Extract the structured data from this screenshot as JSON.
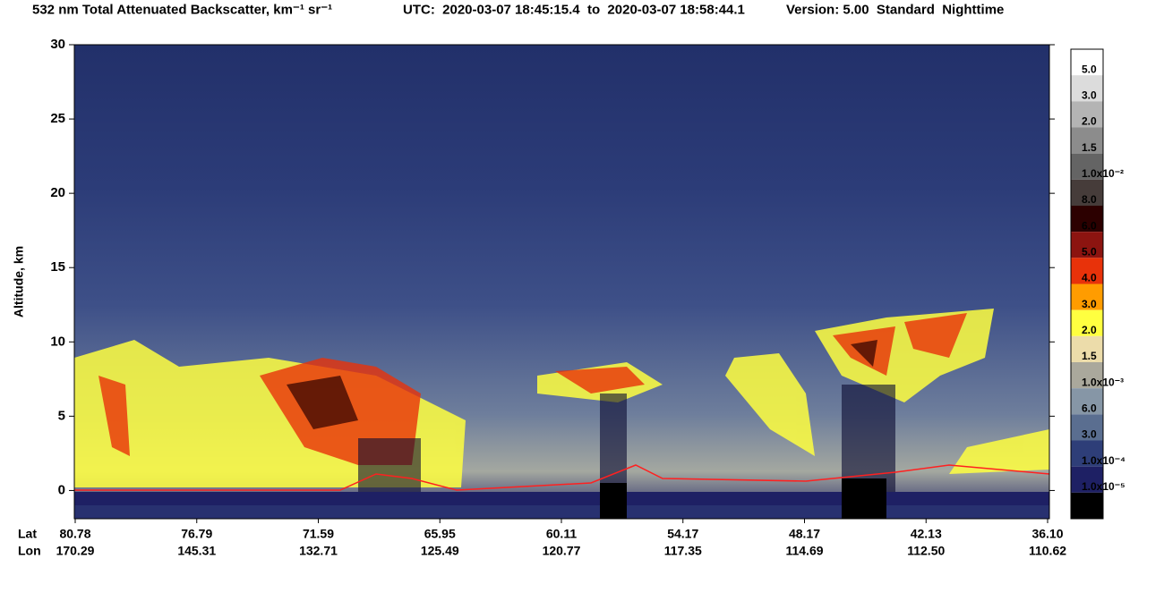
{
  "chart_data": {
    "type": "heatmap",
    "title": "532 nm Total Attenuated Backscatter, km⁻¹ sr⁻¹",
    "time_range": "UTC:  2020-03-07 18:45:15.4  to  2020-03-07 18:58:44.1",
    "version": "Version: 5.00  Standard  Nighttime",
    "y_label": "Altitude, km",
    "ylim": [
      -1.9,
      30
    ],
    "yticks": [
      0,
      5,
      10,
      15,
      20,
      25,
      30
    ],
    "x_row_labels": [
      "Lat",
      "Lon"
    ],
    "lat": [
      "80.78",
      "76.79",
      "71.59",
      "65.95",
      "60.11",
      "54.17",
      "48.17",
      "42.13",
      "36.10"
    ],
    "lon": [
      "170.29",
      "145.31",
      "132.71",
      "125.49",
      "120.77",
      "117.35",
      "114.69",
      "112.50",
      "110.62"
    ],
    "colorbar": {
      "colors": [
        "#ffffff",
        "#dcdcdc",
        "#b4b4b4",
        "#8c8c8c",
        "#646464",
        "#463c3a",
        "#2c0000",
        "#8c1410",
        "#e8320a",
        "#ff9c00",
        "#ffff40",
        "#ecdcaa",
        "#aaa89c",
        "#8696a6",
        "#5a6e90",
        "#2e3e78",
        "#1e2064",
        "#000000"
      ],
      "labels": [
        "5.0",
        "3.0",
        "2.0",
        "1.5",
        "1.0x10⁻²",
        "8.0",
        "6.0",
        "5.0",
        "4.0",
        "3.0",
        "2.0",
        "1.5",
        "1.0x10⁻³",
        "6.0",
        "3.0",
        "1.0x10⁻⁴",
        "1.0x10⁻⁵"
      ]
    }
  }
}
